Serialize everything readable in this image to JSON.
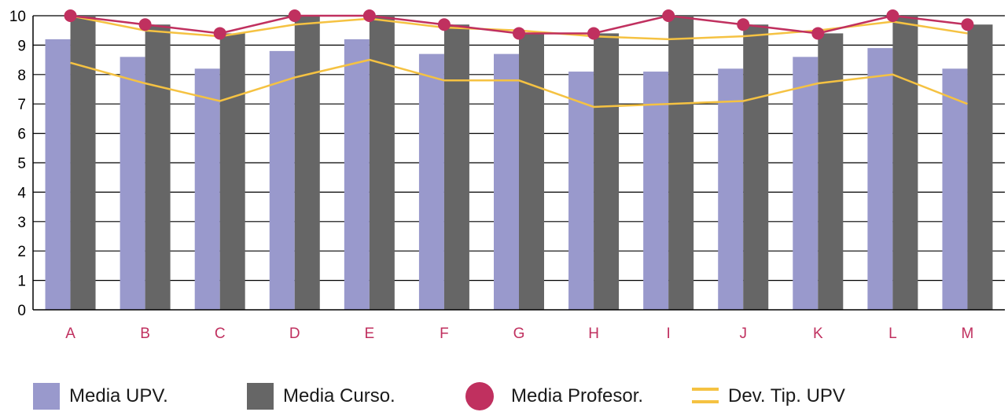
{
  "chart_data": {
    "type": "bar",
    "categories": [
      "A",
      "B",
      "C",
      "D",
      "E",
      "F",
      "G",
      "H",
      "I",
      "J",
      "K",
      "L",
      "M"
    ],
    "ylim": [
      0,
      10
    ],
    "yticks": [
      0,
      1,
      2,
      3,
      4,
      5,
      6,
      7,
      8,
      9,
      10
    ],
    "grid": true,
    "legend_position": "bottom",
    "series": [
      {
        "name": "Media UPV.",
        "kind": "bar",
        "color": "#9999cc",
        "values": [
          9.2,
          8.6,
          8.2,
          8.8,
          9.2,
          8.7,
          8.7,
          8.1,
          8.1,
          8.2,
          8.6,
          8.9,
          8.2
        ]
      },
      {
        "name": "Media Curso.",
        "kind": "bar",
        "color": "#666666",
        "values": [
          10.0,
          9.7,
          9.4,
          10.0,
          10.0,
          9.7,
          9.4,
          9.4,
          10.0,
          9.7,
          9.4,
          10.0,
          9.7
        ]
      },
      {
        "name": "Media Profesor.",
        "kind": "line-marker",
        "color": "#c0305f",
        "values": [
          10.0,
          9.7,
          9.4,
          10.0,
          10.0,
          9.7,
          9.4,
          9.4,
          10.0,
          9.7,
          9.4,
          10.0,
          9.7
        ]
      },
      {
        "name": "Dev. Tip. UPV",
        "kind": "band",
        "color": "#f5c242",
        "upper": [
          10.0,
          9.5,
          9.3,
          9.7,
          9.9,
          9.6,
          9.5,
          9.3,
          9.2,
          9.3,
          9.5,
          9.8,
          9.4
        ],
        "lower": [
          8.4,
          7.7,
          7.1,
          7.9,
          8.5,
          7.8,
          7.8,
          6.9,
          7.0,
          7.1,
          7.7,
          8.0,
          7.0
        ]
      }
    ]
  },
  "legend": [
    {
      "label": "Media UPV.",
      "icon": "square",
      "color": "#9999cc"
    },
    {
      "label": "Media Curso.",
      "icon": "square",
      "color": "#666666"
    },
    {
      "label": "Media Profesor.",
      "icon": "circle",
      "color": "#c0305f"
    },
    {
      "label": "Dev. Tip. UPV",
      "icon": "double-line",
      "color": "#f5c242"
    }
  ]
}
